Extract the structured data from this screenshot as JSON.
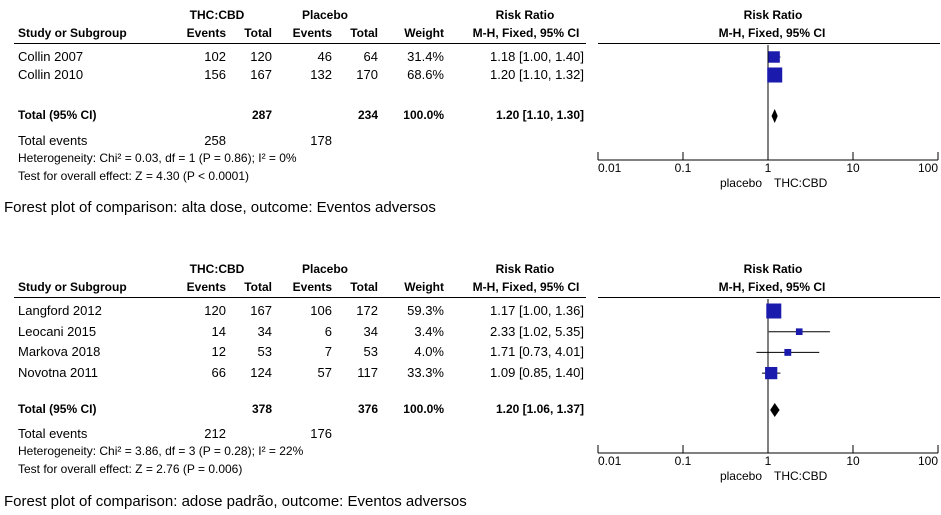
{
  "headers": {
    "study": "Study or Subgroup",
    "thc": "THC:CBD",
    "placebo": "Placebo",
    "events": "Events",
    "total": "Total",
    "weight": "Weight",
    "rr": "Risk Ratio",
    "rr_method": "M-H, Fixed, 95% CI"
  },
  "axis": {
    "ticks": [
      "0.01",
      "0.1",
      "1",
      "10",
      "100"
    ],
    "left_label": "placebo",
    "right_label": "THC:CBD"
  },
  "chart_data": [
    {
      "type": "forest",
      "x_scale": "log",
      "xlim": [
        0.01,
        100
      ],
      "caption": "Forest plot of comparison: alta dose, outcome: Eventos adversos",
      "studies": [
        {
          "name": "Collin 2007",
          "thc_events": "102",
          "thc_total": "120",
          "pl_events": "46",
          "pl_total": "64",
          "weight": "31.4%",
          "ci_text": "1.18 [1.00, 1.40]",
          "rr": 1.18,
          "lo": 1.0,
          "hi": 1.4,
          "w": 31.4
        },
        {
          "name": "Collin 2010",
          "thc_events": "156",
          "thc_total": "167",
          "pl_events": "132",
          "pl_total": "170",
          "weight": "68.6%",
          "ci_text": "1.20 [1.10, 1.32]",
          "rr": 1.2,
          "lo": 1.1,
          "hi": 1.32,
          "w": 68.6
        }
      ],
      "total": {
        "label": "Total (95% CI)",
        "thc_total": "287",
        "pl_total": "234",
        "weight": "100.0%",
        "ci_text": "1.20 [1.10, 1.30]",
        "rr": 1.2,
        "lo": 1.1,
        "hi": 1.3
      },
      "total_events": {
        "label": "Total events",
        "thc": "258",
        "pl": "178"
      },
      "heterogeneity": "Heterogeneity: Chi² = 0.03, df = 1 (P = 0.86); I² = 0%",
      "overall": "Test for overall effect: Z = 4.30 (P < 0.0001)"
    },
    {
      "type": "forest",
      "x_scale": "log",
      "xlim": [
        0.01,
        100
      ],
      "caption": "Forest plot of comparison: adose padrão, outcome: Eventos adversos",
      "studies": [
        {
          "name": "Langford 2012",
          "thc_events": "120",
          "thc_total": "167",
          "pl_events": "106",
          "pl_total": "172",
          "weight": "59.3%",
          "ci_text": "1.17 [1.00, 1.36]",
          "rr": 1.17,
          "lo": 1.0,
          "hi": 1.36,
          "w": 59.3
        },
        {
          "name": "Leocani 2015",
          "thc_events": "14",
          "thc_total": "34",
          "pl_events": "6",
          "pl_total": "34",
          "weight": "3.4%",
          "ci_text": "2.33 [1.02, 5.35]",
          "rr": 2.33,
          "lo": 1.02,
          "hi": 5.35,
          "w": 3.4
        },
        {
          "name": "Markova 2018",
          "thc_events": "12",
          "thc_total": "53",
          "pl_events": "7",
          "pl_total": "53",
          "weight": "4.0%",
          "ci_text": "1.71 [0.73, 4.01]",
          "rr": 1.71,
          "lo": 0.73,
          "hi": 4.01,
          "w": 4.0
        },
        {
          "name": "Novotna 2011",
          "thc_events": "66",
          "thc_total": "124",
          "pl_events": "57",
          "pl_total": "117",
          "weight": "33.3%",
          "ci_text": "1.09 [0.85, 1.40]",
          "rr": 1.09,
          "lo": 0.85,
          "hi": 1.4,
          "w": 33.3
        }
      ],
      "total": {
        "label": "Total (95% CI)",
        "thc_total": "378",
        "pl_total": "376",
        "weight": "100.0%",
        "ci_text": "1.20 [1.06, 1.37]",
        "rr": 1.2,
        "lo": 1.06,
        "hi": 1.37
      },
      "total_events": {
        "label": "Total events",
        "thc": "212",
        "pl": "176"
      },
      "heterogeneity": "Heterogeneity: Chi² = 3.86, df = 3 (P = 0.28); I² = 22%",
      "overall": "Test for overall effect: Z = 2.76 (P = 0.006)"
    }
  ],
  "colors": {
    "marker": "#1a1aad",
    "line": "#000000"
  }
}
